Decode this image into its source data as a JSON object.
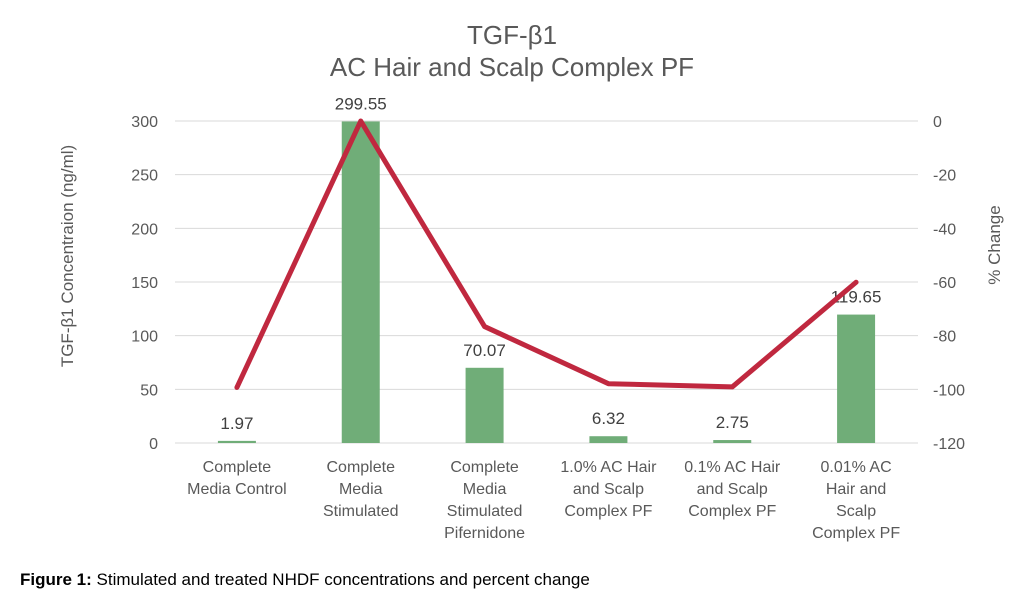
{
  "chart_data": {
    "type": "bar+line",
    "title": [
      "TGF-β1",
      "AC Hair and Scalp Complex PF"
    ],
    "ylabel_left": "TGF-β1 Concentraion (ng/ml)",
    "ylabel_right": "% Change",
    "ylim_left": [
      0,
      300
    ],
    "ylim_right": [
      -120,
      0
    ],
    "yticks_left": [
      "0",
      "50",
      "100",
      "150",
      "200",
      "250",
      "300"
    ],
    "yticks_right": [
      "-120",
      "-100",
      "-80",
      "-60",
      "-40",
      "-20",
      "0"
    ],
    "grid": true,
    "categories": [
      [
        "Complete",
        "Media Control"
      ],
      [
        "Complete",
        "Media",
        "Stimulated"
      ],
      [
        "Complete",
        "Media",
        "Stimulated",
        "Pifernidone"
      ],
      [
        "1.0% AC Hair",
        "and Scalp",
        "Complex PF"
      ],
      [
        "0.1% AC Hair",
        "and Scalp",
        "Complex PF"
      ],
      [
        "0.01% AC",
        "Hair and",
        "Scalp",
        "Complex PF"
      ]
    ],
    "series": [
      {
        "type": "bar",
        "axis": "left",
        "values": [
          1.97,
          299.55,
          70.07,
          6.32,
          2.75,
          119.65
        ],
        "labels": [
          "1.97",
          "299.55",
          "70.07",
          "6.32",
          "2.75",
          "119.65"
        ],
        "color": "#70ad78"
      },
      {
        "type": "line",
        "axis": "right",
        "values": [
          -99.3,
          0,
          -76.6,
          -97.9,
          -99.1,
          -60.1
        ],
        "color": "#c0283f"
      }
    ]
  },
  "caption": {
    "label": "Figure 1:",
    "text": " Stimulated and treated NHDF concentrations and percent change"
  }
}
